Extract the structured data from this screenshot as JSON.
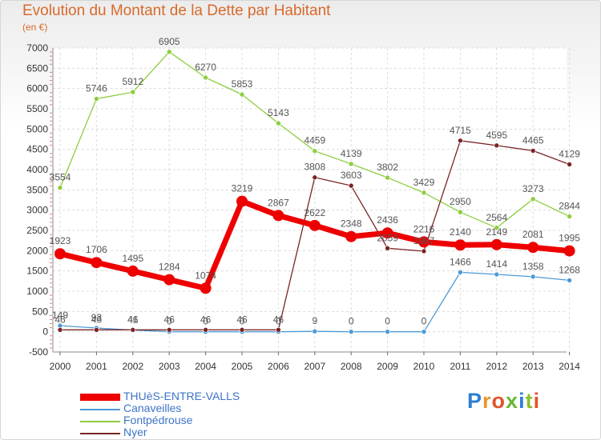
{
  "title": "Evolution du Montant de la Dette par Habitant",
  "unit": "(en €)",
  "logo": {
    "text": "Proxiti",
    "colors": [
      "#2e7fd1",
      "#e8962c",
      "#e2532c",
      "#68b834",
      "#2e7fd1",
      "#8bbf2f",
      "#e2532c"
    ]
  },
  "chart_data": {
    "type": "line",
    "x": [
      2000,
      2001,
      2002,
      2003,
      2004,
      2005,
      2006,
      2007,
      2008,
      2009,
      2010,
      2011,
      2012,
      2013,
      2014
    ],
    "ylim": [
      -500,
      7000
    ],
    "yticks": [
      -500,
      0,
      500,
      1000,
      1500,
      2000,
      2500,
      3000,
      3500,
      4000,
      4500,
      5000,
      5500,
      6000,
      6500,
      7000
    ],
    "grid": true,
    "legend_position": "bottom-left",
    "series": [
      {
        "name": "THUèS-ENTRE-VALLS",
        "color": "#ee0000",
        "width": 7,
        "values": [
          1923,
          1706,
          1495,
          1284,
          1074,
          3219,
          2867,
          2622,
          2348,
          2436,
          2216,
          2140,
          2149,
          2081,
          1995
        ],
        "labels": [
          "1923",
          "1706",
          "1495",
          "1284",
          "1074",
          "3219",
          "2867",
          "2622",
          "2348",
          "2436",
          "2216",
          "2140",
          "2149",
          "2081",
          "1995"
        ]
      },
      {
        "name": "Canaveilles",
        "color": "#4d9ad6",
        "width": 1.3,
        "values": [
          149,
          93,
          41,
          0,
          0,
          0,
          0,
          9,
          0,
          0,
          0,
          1466,
          1414,
          1358,
          1268
        ],
        "labels": [
          "149",
          "93",
          "41",
          "0",
          "0",
          "0",
          "0",
          "9",
          "0",
          "0",
          "0",
          "1466",
          "1414",
          "1358",
          "1268"
        ]
      },
      {
        "name": "Fontpédrouse",
        "color": "#8dce3f",
        "width": 1.3,
        "values": [
          3554,
          5746,
          5912,
          6905,
          6270,
          5853,
          5143,
          4459,
          4139,
          3802,
          3429,
          2950,
          2564,
          3273,
          2844
        ],
        "labels": [
          "3554",
          "5746",
          "5912",
          "6905",
          "6270",
          "5853",
          "5143",
          "4459",
          "4139",
          "3802",
          "3429",
          "2950",
          "2564",
          "3273",
          "2844"
        ]
      },
      {
        "name": "Nyer",
        "color": "#7a2525",
        "width": 1.3,
        "values": [
          46,
          46,
          46,
          46,
          46,
          46,
          46,
          3808,
          3603,
          2059,
          1987,
          4715,
          4595,
          4465,
          4129
        ],
        "labels": [
          "46",
          "46",
          "46",
          "46",
          "46",
          "46",
          "46",
          "3808",
          "3603",
          "2059",
          "1987",
          "4715",
          "4595",
          "4465",
          "4129"
        ]
      }
    ]
  }
}
